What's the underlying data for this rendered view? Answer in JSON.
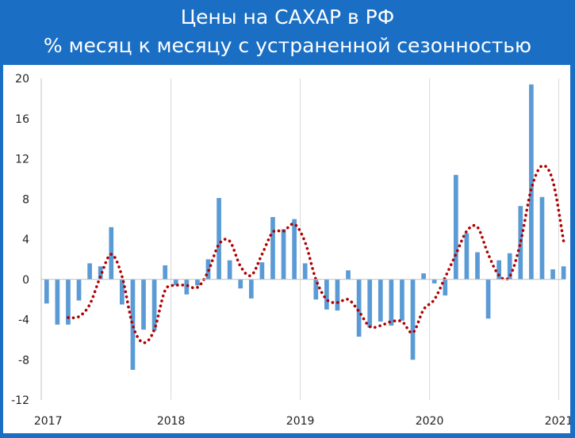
{
  "header": {
    "title": "Цены на САХАР в РФ",
    "subtitle": "% месяц к месяцу с устраненной сезонностью"
  },
  "colors": {
    "frame": "#1a6fc4",
    "bars": "#5b9bd5",
    "trend": "#b00000",
    "grid": "#d9d9d9"
  },
  "chart_data": {
    "type": "bar",
    "title": "Цены на САХАР в РФ",
    "subtitle": "% месяц к месяцу с устраненной сезонностью",
    "xlabel": "",
    "ylabel": "",
    "ylim": [
      -12,
      20
    ],
    "yticks": [
      -12,
      -8,
      -4,
      0,
      4,
      8,
      12,
      16,
      20
    ],
    "xticks": [
      "2017",
      "2018",
      "2019",
      "2020",
      "2021"
    ],
    "grid": "vertical gridlines at year boundaries",
    "legend": "none",
    "series": [
      {
        "type": "bar",
        "values": [
          -2.4,
          -4.5,
          -4.5,
          -2.1,
          1.6,
          1.3,
          5.2,
          -2.5,
          -9.0,
          -5.0,
          -5.1,
          1.4,
          -0.6,
          -1.5,
          -0.6,
          2.0,
          8.1,
          1.9,
          -0.9,
          -1.9,
          1.7,
          6.2,
          5.0,
          6.0,
          1.6,
          -2.0,
          -3.0,
          -3.1,
          0.9,
          -5.7,
          -4.8,
          -4.2,
          -4.6,
          -4.1,
          -8.0,
          0.6,
          -0.4,
          -1.6,
          10.4,
          4.6,
          2.7,
          -3.9,
          1.9,
          2.6,
          7.3,
          19.4,
          8.2,
          1.0,
          1.3
        ]
      },
      {
        "type": "line",
        "style": "dotted",
        "values": [
          null,
          null,
          -3.8,
          -3.7,
          -2.5,
          0.3,
          2.5,
          0.3,
          -4.6,
          -6.3,
          -5.0,
          -1.1,
          -0.6,
          -0.6,
          -0.8,
          0.8,
          3.5,
          3.8,
          1.3,
          0.4,
          2.5,
          4.7,
          4.8,
          5.5,
          3.7,
          0.0,
          -2.0,
          -2.3,
          -2.0,
          -3.2,
          -4.7,
          -4.6,
          -4.2,
          -4.2,
          -5.3,
          -3.0,
          -2.0,
          0.2,
          2.5,
          4.8,
          5.2,
          2.5,
          0.4,
          0.3,
          3.7,
          9.0,
          11.3,
          9.8,
          3.8
        ]
      }
    ]
  }
}
